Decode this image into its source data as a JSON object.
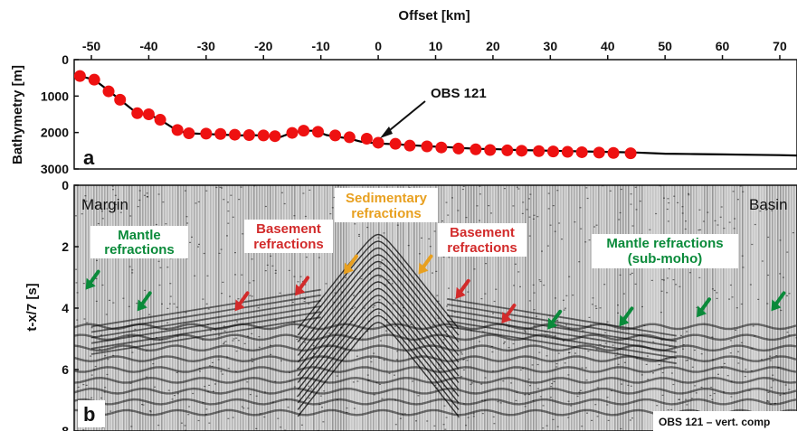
{
  "chart_data": [
    {
      "panel": "a",
      "type": "line",
      "xlabel": "Offset [km]",
      "ylabel": "Bathymetry [m]",
      "xlim": [
        -53,
        73
      ],
      "ylim": [
        3000,
        0
      ],
      "xticks": [
        -50,
        -40,
        -30,
        -20,
        -10,
        0,
        10,
        20,
        30,
        40,
        50,
        60,
        70
      ],
      "yticks": [
        0,
        1000,
        2000,
        3000
      ],
      "series": [
        {
          "role": "bathymetry-profile",
          "color": "#000000",
          "x": [
            -52,
            -49.5,
            -47,
            -45,
            -42,
            -40,
            -38,
            -35,
            -33,
            -30,
            -27,
            -24,
            -22,
            -19.5,
            -17,
            -15,
            -13,
            -11,
            -9,
            -7,
            -5,
            -3,
            0,
            3,
            6,
            9,
            12,
            15,
            18,
            21,
            24,
            27,
            30,
            33,
            36,
            39,
            42,
            45,
            50,
            55,
            60,
            65,
            70,
            73
          ],
          "values": [
            450,
            550,
            850,
            1100,
            1480,
            1500,
            1650,
            1950,
            2020,
            2040,
            2060,
            2080,
            2070,
            2090,
            2120,
            2000,
            1950,
            1950,
            2070,
            2120,
            2170,
            2250,
            2300,
            2320,
            2350,
            2380,
            2400,
            2430,
            2450,
            2460,
            2480,
            2490,
            2500,
            2510,
            2520,
            2530,
            2540,
            2550,
            2580,
            2590,
            2600,
            2610,
            2620,
            2630
          ]
        },
        {
          "role": "obs-locations",
          "color": "#ee1111",
          "x": [
            -52,
            -49.5,
            -47,
            -45,
            -42,
            -40,
            -38,
            -35,
            -33,
            -30,
            -27.5,
            -25,
            -22.5,
            -20,
            -18,
            -15,
            -13,
            -10.5,
            -7.5,
            -5,
            -2,
            0,
            3,
            5.5,
            8.5,
            11,
            14,
            17,
            19.5,
            22.5,
            25,
            28,
            30.5,
            33,
            35.5,
            38.5,
            41,
            44
          ],
          "values": [
            450,
            550,
            870,
            1100,
            1470,
            1500,
            1650,
            1930,
            2020,
            2030,
            2040,
            2060,
            2070,
            2080,
            2100,
            2010,
            1950,
            1980,
            2080,
            2130,
            2170,
            2280,
            2310,
            2360,
            2380,
            2410,
            2440,
            2460,
            2480,
            2490,
            2500,
            2510,
            2520,
            2530,
            2540,
            2550,
            2560,
            2570
          ]
        }
      ],
      "annotations": [
        {
          "text": "OBS 121",
          "x": 0.5,
          "y": 2280
        }
      ]
    },
    {
      "panel": "b",
      "type": "heatmap",
      "description_kind": "seismic record section",
      "ylabel": "t-x/7 [s]",
      "xlim": [
        -53,
        73
      ],
      "ylim": [
        8,
        0
      ],
      "yticks": [
        0,
        2,
        4,
        6,
        8
      ],
      "corner_labels": {
        "left": "Margin",
        "right": "Basin"
      },
      "caption": "OBS 121 – vert. comp",
      "annotations": [
        {
          "lines": [
            "Mantle",
            "refractions"
          ],
          "color": "#0a8a3a"
        },
        {
          "lines": [
            "Basement",
            "refractions"
          ],
          "color": "#d22b2b"
        },
        {
          "lines": [
            "Sedimentary",
            "refractions"
          ],
          "color": "#e8a020"
        },
        {
          "lines": [
            "Basement",
            "refractions"
          ],
          "color": "#d22b2b"
        },
        {
          "lines": [
            "Mantle refractions",
            "(sub-moho)"
          ],
          "color": "#0a8a3a"
        }
      ],
      "arrows": [
        {
          "color": "#0a8a3a",
          "x": -51,
          "t": 3.4
        },
        {
          "color": "#0a8a3a",
          "x": -42,
          "t": 4.1
        },
        {
          "color": "#d22b2b",
          "x": -25,
          "t": 4.1
        },
        {
          "color": "#d22b2b",
          "x": -14.5,
          "t": 3.6
        },
        {
          "color": "#e8a020",
          "x": -6,
          "t": 2.9
        },
        {
          "color": "#e8a020",
          "x": 7,
          "t": 2.9
        },
        {
          "color": "#d22b2b",
          "x": 13.5,
          "t": 3.7
        },
        {
          "color": "#d22b2b",
          "x": 21.5,
          "t": 4.5
        },
        {
          "color": "#0a8a3a",
          "x": 29.5,
          "t": 4.7
        },
        {
          "color": "#0a8a3a",
          "x": 42,
          "t": 4.6
        },
        {
          "color": "#0a8a3a",
          "x": 55.5,
          "t": 4.3
        },
        {
          "color": "#0a8a3a",
          "x": 68.5,
          "t": 4.1
        }
      ]
    }
  ],
  "colors": {
    "obs": "#ee1111",
    "green": "#0a8a3a",
    "red": "#d22b2b",
    "orange": "#e8a020",
    "ink": "#111111"
  }
}
